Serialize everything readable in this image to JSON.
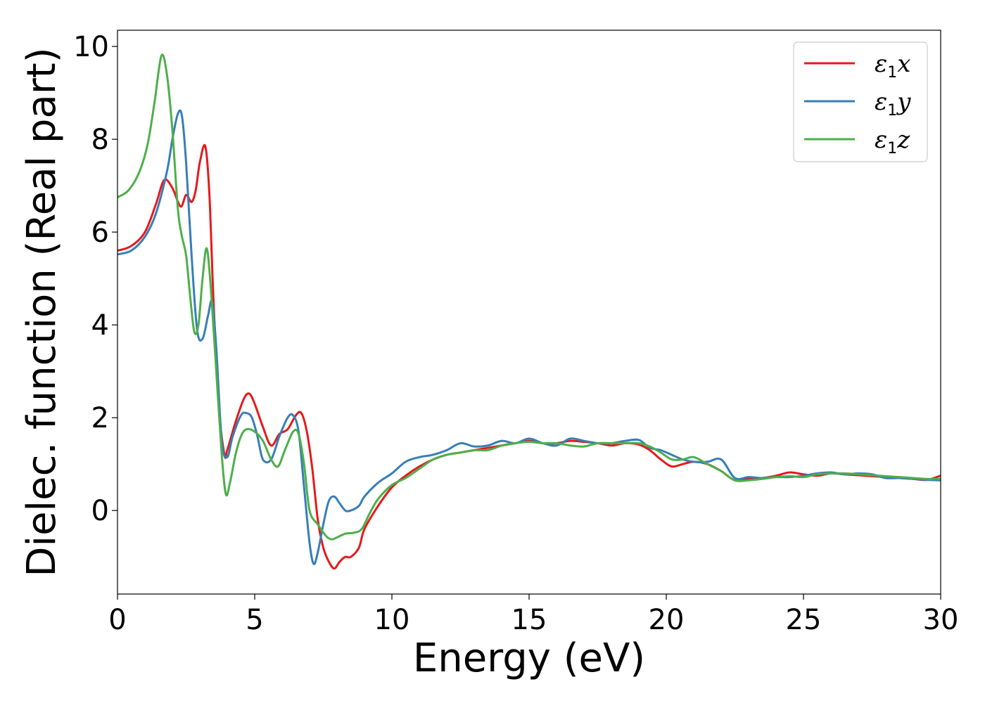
{
  "chart_data": {
    "type": "line",
    "title": "",
    "xlabel": "Energy (eV)",
    "ylabel": "Dielec. function (Real part)",
    "xlim": [
      0,
      30
    ],
    "ylim": [
      -1.8,
      10.35
    ],
    "xticks": [
      0,
      5,
      10,
      15,
      20,
      25,
      30
    ],
    "yticks": [
      0,
      2,
      4,
      6,
      8,
      10
    ],
    "grid": false,
    "legend_position": "top-right",
    "series": [
      {
        "name": "ε1x",
        "legend": {
          "base": "ε",
          "sub": "1",
          "tail": "x"
        },
        "color": "#e41a1c",
        "x": [
          0,
          0.5,
          1.0,
          1.4,
          1.7,
          2.0,
          2.3,
          2.5,
          2.7,
          2.85,
          3.0,
          3.2,
          3.35,
          3.5,
          3.7,
          3.9,
          4.0,
          4.3,
          4.6,
          4.8,
          5.0,
          5.3,
          5.6,
          5.9,
          6.2,
          6.5,
          6.7,
          6.9,
          7.1,
          7.3,
          7.5,
          7.7,
          7.9,
          8.1,
          8.3,
          8.5,
          8.8,
          9.0,
          9.5,
          10.0,
          10.5,
          11.0,
          11.5,
          12.0,
          12.5,
          13.0,
          13.5,
          14.0,
          14.5,
          15.0,
          15.5,
          16.0,
          16.5,
          17.0,
          17.5,
          18.0,
          18.5,
          19.0,
          19.4,
          19.8,
          20.2,
          20.6,
          21.0,
          21.5,
          22.0,
          22.5,
          23.0,
          23.5,
          24.0,
          24.5,
          25.0,
          25.5,
          26.0,
          26.5,
          27.0,
          27.5,
          28.0,
          28.5,
          29.0,
          29.5,
          30.0
        ],
        "y": [
          5.6,
          5.7,
          6.0,
          6.6,
          7.12,
          6.95,
          6.55,
          6.8,
          6.65,
          6.9,
          7.5,
          7.85,
          6.8,
          4.5,
          2.2,
          1.2,
          1.3,
          1.9,
          2.4,
          2.52,
          2.3,
          1.8,
          1.4,
          1.65,
          1.75,
          2.05,
          2.1,
          1.7,
          0.9,
          -0.2,
          -0.8,
          -1.1,
          -1.25,
          -1.1,
          -1.0,
          -1.0,
          -0.8,
          -0.4,
          0.1,
          0.5,
          0.75,
          0.95,
          1.1,
          1.2,
          1.25,
          1.3,
          1.35,
          1.4,
          1.45,
          1.5,
          1.45,
          1.45,
          1.5,
          1.48,
          1.45,
          1.4,
          1.45,
          1.42,
          1.3,
          1.1,
          0.95,
          1.0,
          1.05,
          1.0,
          0.85,
          0.65,
          0.68,
          0.7,
          0.75,
          0.82,
          0.78,
          0.75,
          0.8,
          0.78,
          0.76,
          0.74,
          0.72,
          0.7,
          0.68,
          0.66,
          0.75
        ]
      },
      {
        "name": "ε1y",
        "legend": {
          "base": "ε",
          "sub": "1",
          "tail": "y"
        },
        "color": "#377eb8",
        "x": [
          0,
          0.5,
          1.0,
          1.4,
          1.8,
          2.0,
          2.2,
          2.35,
          2.5,
          2.7,
          2.9,
          3.1,
          3.3,
          3.45,
          3.6,
          3.8,
          4.0,
          4.2,
          4.5,
          4.7,
          4.9,
          5.1,
          5.3,
          5.6,
          5.9,
          6.2,
          6.4,
          6.6,
          6.8,
          7.0,
          7.15,
          7.3,
          7.5,
          7.7,
          7.9,
          8.1,
          8.3,
          8.5,
          8.8,
          9.0,
          9.5,
          10.0,
          10.5,
          11.0,
          11.5,
          12.0,
          12.5,
          13.0,
          13.5,
          14.0,
          14.5,
          15.0,
          15.5,
          16.0,
          16.5,
          17.0,
          17.5,
          18.0,
          18.5,
          19.0,
          19.4,
          19.8,
          20.2,
          20.6,
          21.0,
          21.5,
          22.0,
          22.5,
          23.0,
          23.5,
          24.0,
          24.5,
          25.0,
          25.5,
          26.0,
          26.5,
          27.0,
          27.5,
          28.0,
          28.5,
          29.0,
          29.5,
          30.0
        ],
        "y": [
          5.52,
          5.6,
          5.9,
          6.4,
          7.3,
          8.0,
          8.55,
          8.5,
          7.5,
          5.5,
          3.9,
          3.7,
          4.2,
          4.5,
          3.5,
          1.5,
          1.15,
          1.6,
          2.05,
          2.1,
          2.0,
          1.6,
          1.1,
          1.1,
          1.6,
          2.0,
          2.05,
          1.7,
          0.5,
          -0.7,
          -1.15,
          -0.9,
          -0.3,
          0.2,
          0.3,
          0.15,
          0.0,
          0.0,
          0.1,
          0.3,
          0.6,
          0.8,
          1.05,
          1.15,
          1.2,
          1.3,
          1.45,
          1.38,
          1.4,
          1.5,
          1.45,
          1.55,
          1.45,
          1.4,
          1.55,
          1.5,
          1.45,
          1.45,
          1.5,
          1.52,
          1.35,
          1.3,
          1.2,
          1.1,
          1.05,
          1.05,
          1.1,
          0.7,
          0.72,
          0.7,
          0.72,
          0.72,
          0.75,
          0.8,
          0.82,
          0.78,
          0.8,
          0.78,
          0.7,
          0.7,
          0.68,
          0.66,
          0.65
        ]
      },
      {
        "name": "ε1z",
        "legend": {
          "base": "ε",
          "sub": "1",
          "tail": "z"
        },
        "color": "#4daf4a",
        "x": [
          0,
          0.4,
          0.8,
          1.1,
          1.35,
          1.6,
          1.8,
          2.0,
          2.2,
          2.35,
          2.5,
          2.65,
          2.8,
          2.95,
          3.1,
          3.25,
          3.4,
          3.6,
          3.8,
          3.95,
          4.1,
          4.3,
          4.5,
          4.7,
          5.0,
          5.3,
          5.6,
          5.85,
          6.1,
          6.4,
          6.6,
          6.8,
          7.0,
          7.3,
          7.6,
          7.8,
          8.0,
          8.3,
          8.6,
          8.9,
          9.2,
          9.5,
          10.0,
          10.5,
          11.0,
          11.5,
          12.0,
          12.5,
          13.0,
          13.5,
          14.0,
          14.5,
          15.0,
          15.5,
          16.0,
          16.5,
          17.0,
          17.5,
          18.0,
          18.5,
          19.0,
          19.4,
          19.8,
          20.2,
          20.6,
          21.0,
          21.5,
          22.0,
          22.5,
          23.0,
          23.5,
          24.0,
          24.5,
          25.0,
          25.5,
          26.0,
          26.5,
          27.0,
          27.5,
          28.0,
          28.5,
          29.0,
          29.5,
          30.0
        ],
        "y": [
          6.75,
          6.9,
          7.3,
          7.9,
          8.8,
          9.8,
          9.4,
          8.2,
          6.5,
          5.9,
          5.5,
          4.6,
          3.85,
          4.0,
          5.0,
          5.65,
          4.8,
          3.0,
          1.2,
          0.35,
          0.6,
          1.2,
          1.6,
          1.75,
          1.7,
          1.5,
          1.1,
          0.95,
          1.3,
          1.7,
          1.65,
          1.0,
          0.0,
          -0.3,
          -0.55,
          -0.62,
          -0.58,
          -0.5,
          -0.48,
          -0.4,
          -0.05,
          0.25,
          0.55,
          0.7,
          0.9,
          1.1,
          1.2,
          1.25,
          1.3,
          1.3,
          1.4,
          1.45,
          1.48,
          1.45,
          1.45,
          1.4,
          1.38,
          1.45,
          1.45,
          1.45,
          1.45,
          1.38,
          1.25,
          1.1,
          1.1,
          1.15,
          1.0,
          0.85,
          0.65,
          0.65,
          0.68,
          0.72,
          0.74,
          0.72,
          0.78,
          0.8,
          0.8,
          0.78,
          0.76,
          0.74,
          0.72,
          0.7,
          0.68,
          0.68
        ]
      }
    ]
  }
}
